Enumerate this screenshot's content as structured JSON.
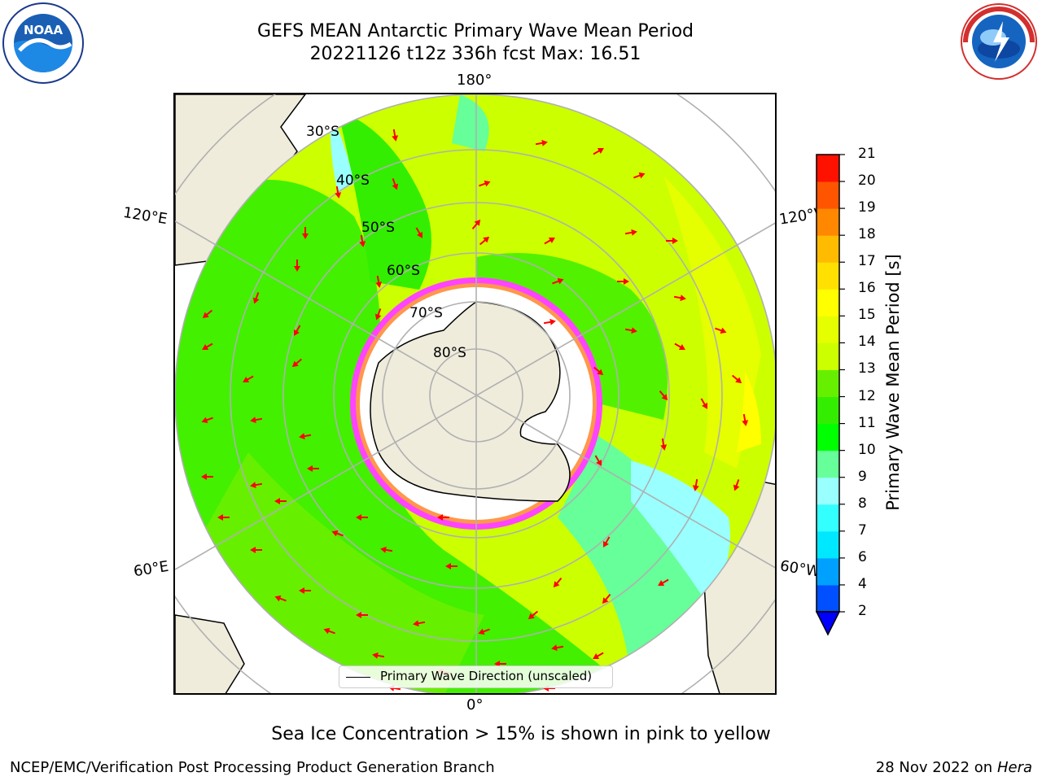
{
  "title": {
    "line1": "GEFS MEAN Antarctic Primary Wave Mean Period",
    "line2": "20221126 t12z 336h fcst   Max: 16.51"
  },
  "logos": {
    "noaa": {
      "icon": "noaa-logo",
      "text": "NOAA",
      "ring_text": "NATIONAL OCEANIC AND ATMOSPHERIC ADMINISTRATION · U.S. DEPARTMENT OF COMMERCE"
    },
    "nws": {
      "icon": "nws-logo",
      "ring_text": "NATIONAL WEATHER SERVICE"
    }
  },
  "map": {
    "projection": "south-polar-stereographic",
    "longitude_labels": {
      "top": "180°",
      "bottom": "0°",
      "upper_left": "120°E",
      "upper_right": "120°W",
      "lower_left": "60°E",
      "lower_right": "60°W"
    },
    "latitude_labels": [
      "30°S",
      "40°S",
      "50°S",
      "60°S",
      "70°S",
      "80°S"
    ],
    "legend_label": "Primary Wave Direction (unscaled)",
    "colors": {
      "land": "#efecdc",
      "sea_ice": "#ffffff",
      "ice_edge": "#ff44ff",
      "arrows": "#ff0000",
      "grid": "#b0b0b0"
    }
  },
  "colorbar": {
    "label": "Primary Wave Mean Period [s]",
    "ticks": [
      "2",
      "4",
      "6",
      "7",
      "8",
      "9",
      "10",
      "11",
      "12",
      "13",
      "14",
      "15",
      "16",
      "17",
      "18",
      "19",
      "20",
      "21"
    ],
    "colors": [
      "#0050ff",
      "#00a0ff",
      "#00e8ff",
      "#33ffff",
      "#99ffff",
      "#66ff99",
      "#00ff00",
      "#33ee00",
      "#66f000",
      "#ccff00",
      "#e5ff00",
      "#ffff00",
      "#ffe000",
      "#ffbb00",
      "#ff8800",
      "#ff5500",
      "#ff1100"
    ],
    "extend_min_color": "#0000ff"
  },
  "caption": "Sea Ice Concentration > 15% is shown in pink to yellow",
  "footer": {
    "left": "NCEP/EMC/Verification Post Processing Product Generation Branch",
    "right_date": "28 Nov 2022 on",
    "right_machine": "Hera"
  }
}
